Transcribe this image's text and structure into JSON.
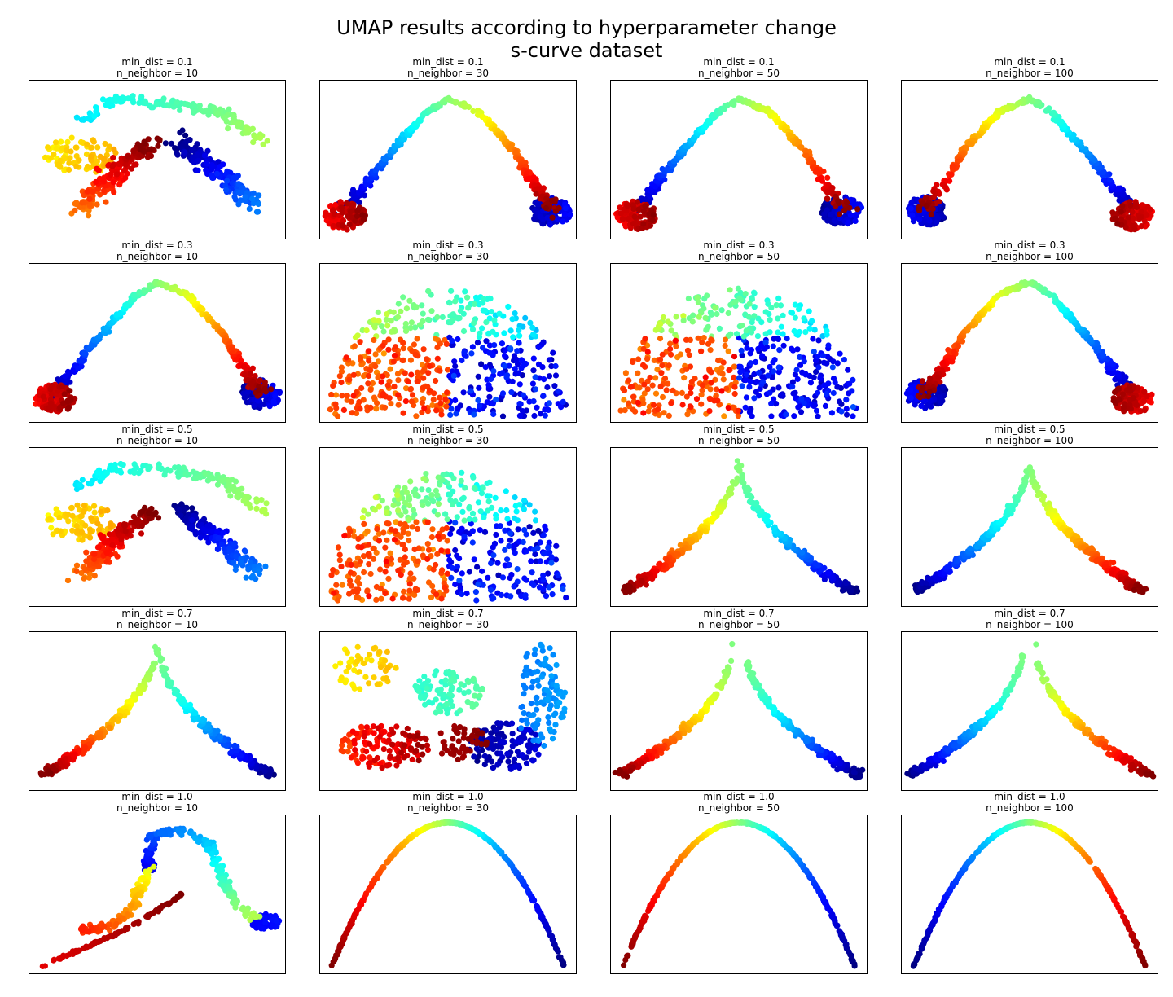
{
  "title_line1": "UMAP results according to hyperparameter change",
  "title_line2": "s-curve dataset",
  "colormap": [
    "#00007f",
    "#0000ff",
    "#007fff",
    "#00ffff",
    "#7fff7f",
    "#ffff00",
    "#ff7f00",
    "#ff0000",
    "#7f0000"
  ],
  "chart_data": [
    {
      "type": "scatter",
      "min_dist": 0.1,
      "n_neighbor": 10,
      "title_line1": "min_dist = 0.1",
      "title_line2": "n_neighbor = 10",
      "shape": "s-curve",
      "orientation": "high-right",
      "axes": "off"
    },
    {
      "type": "scatter",
      "min_dist": 0.1,
      "n_neighbor": 30,
      "title_line1": "min_dist = 0.1",
      "title_line2": "n_neighbor = 30",
      "shape": "arch",
      "orientation": "high-right",
      "axes": "off"
    },
    {
      "type": "scatter",
      "min_dist": 0.1,
      "n_neighbor": 50,
      "title_line1": "min_dist = 0.1",
      "title_line2": "n_neighbor = 50",
      "shape": "arch",
      "orientation": "high-right",
      "axes": "off"
    },
    {
      "type": "scatter",
      "min_dist": 0.1,
      "n_neighbor": 100,
      "title_line1": "min_dist = 0.1",
      "title_line2": "n_neighbor = 100",
      "shape": "arch",
      "orientation": "high-left",
      "axes": "off"
    },
    {
      "type": "scatter",
      "min_dist": 0.3,
      "n_neighbor": 10,
      "title_line1": "min_dist = 0.3",
      "title_line2": "n_neighbor = 10",
      "shape": "arch",
      "orientation": "high-right",
      "axes": "off"
    },
    {
      "type": "scatter",
      "min_dist": 0.3,
      "n_neighbor": 30,
      "title_line1": "min_dist = 0.3",
      "title_line2": "n_neighbor = 30",
      "shape": "dome",
      "orientation": "high-right",
      "axes": "off"
    },
    {
      "type": "scatter",
      "min_dist": 0.3,
      "n_neighbor": 50,
      "title_line1": "min_dist = 0.3",
      "title_line2": "n_neighbor = 50",
      "shape": "dome",
      "orientation": "high-right",
      "axes": "off"
    },
    {
      "type": "scatter",
      "min_dist": 0.3,
      "n_neighbor": 100,
      "title_line1": "min_dist = 0.3",
      "title_line2": "n_neighbor = 100",
      "shape": "arch",
      "orientation": "high-left",
      "axes": "off"
    },
    {
      "type": "scatter",
      "min_dist": 0.5,
      "n_neighbor": 10,
      "title_line1": "min_dist = 0.5",
      "title_line2": "n_neighbor = 10",
      "shape": "s-curve",
      "orientation": "high-right",
      "axes": "off"
    },
    {
      "type": "scatter",
      "min_dist": 0.5,
      "n_neighbor": 30,
      "title_line1": "min_dist = 0.5",
      "title_line2": "n_neighbor = 30",
      "shape": "dome",
      "orientation": "high-right",
      "axes": "off"
    },
    {
      "type": "scatter",
      "min_dist": 0.5,
      "n_neighbor": 50,
      "title_line1": "min_dist = 0.5",
      "title_line2": "n_neighbor = 50",
      "shape": "peak",
      "orientation": "high-right",
      "axes": "off"
    },
    {
      "type": "scatter",
      "min_dist": 0.5,
      "n_neighbor": 100,
      "title_line1": "min_dist = 0.5",
      "title_line2": "n_neighbor = 100",
      "shape": "peak",
      "orientation": "high-left",
      "axes": "off"
    },
    {
      "type": "scatter",
      "min_dist": 0.7,
      "n_neighbor": 10,
      "title_line1": "min_dist = 0.7",
      "title_line2": "n_neighbor = 10",
      "shape": "peak",
      "orientation": "high-right",
      "axes": "off"
    },
    {
      "type": "scatter",
      "min_dist": 0.7,
      "n_neighbor": 30,
      "title_line1": "min_dist = 0.7",
      "title_line2": "n_neighbor = 30",
      "shape": "clusters",
      "orientation": "high-right",
      "axes": "off"
    },
    {
      "type": "scatter",
      "min_dist": 0.7,
      "n_neighbor": 50,
      "title_line1": "min_dist = 0.7",
      "title_line2": "n_neighbor = 50",
      "shape": "split-peak",
      "orientation": "high-right",
      "axes": "off"
    },
    {
      "type": "scatter",
      "min_dist": 0.7,
      "n_neighbor": 100,
      "title_line1": "min_dist = 0.7",
      "title_line2": "n_neighbor = 100",
      "shape": "split-peak",
      "orientation": "high-left",
      "axes": "off"
    },
    {
      "type": "scatter",
      "min_dist": 1.0,
      "n_neighbor": 10,
      "title_line1": "min_dist = 1.0",
      "title_line2": "n_neighbor = 10",
      "shape": "hook",
      "orientation": "high-right",
      "axes": "off"
    },
    {
      "type": "scatter",
      "min_dist": 1.0,
      "n_neighbor": 30,
      "title_line1": "min_dist = 1.0",
      "title_line2": "n_neighbor = 30",
      "shape": "thin-arch",
      "orientation": "high-right",
      "axes": "off"
    },
    {
      "type": "scatter",
      "min_dist": 1.0,
      "n_neighbor": 50,
      "title_line1": "min_dist = 1.0",
      "title_line2": "n_neighbor = 50",
      "shape": "thin-arch",
      "orientation": "high-right",
      "axes": "off"
    },
    {
      "type": "scatter",
      "min_dist": 1.0,
      "n_neighbor": 100,
      "title_line1": "min_dist = 1.0",
      "title_line2": "n_neighbor = 100",
      "shape": "thin-arch",
      "orientation": "high-left",
      "axes": "off"
    }
  ]
}
